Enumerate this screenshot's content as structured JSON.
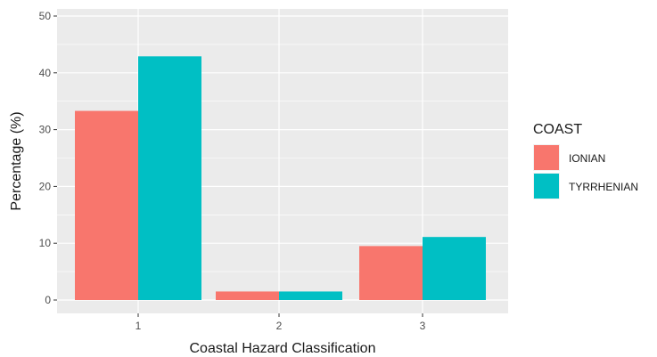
{
  "chart_data": {
    "type": "bar",
    "categories": [
      "1",
      "2",
      "3"
    ],
    "series": [
      {
        "name": "IONIAN",
        "values": [
          33.3,
          1.5,
          9.5
        ],
        "color": "#F8766D"
      },
      {
        "name": "TYRRHENIAN",
        "values": [
          42.9,
          1.5,
          11.1
        ],
        "color": "#00BFC4"
      }
    ],
    "xlabel": "Coastal Hazard Classification",
    "ylabel": "Percentage (%)",
    "ylim": [
      0,
      50
    ],
    "yticks": [
      0,
      10,
      20,
      30,
      40,
      50
    ],
    "legend_title": "COAST",
    "legend_position": "right",
    "grid": true,
    "panel_background": "#EBEBEB"
  }
}
